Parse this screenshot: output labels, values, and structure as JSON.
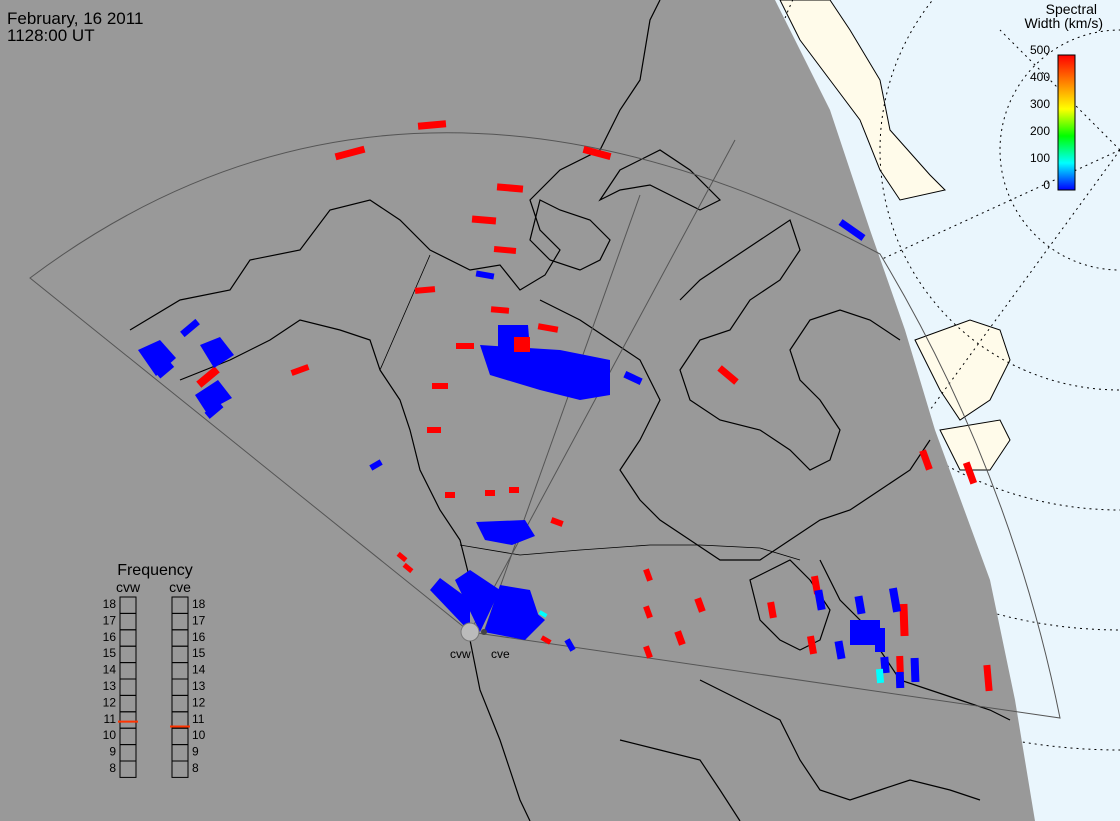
{
  "header": {
    "date": "February, 16 2011",
    "time": "1128:00 UT"
  },
  "colorbar": {
    "title_line1": "Spectral",
    "title_line2": "Width (km/s)",
    "ticks": [
      "500",
      "400",
      "300",
      "200",
      "100",
      "0"
    ],
    "colors": [
      "#ff0000",
      "#ff8000",
      "#ffff00",
      "#00ff00",
      "#00ffff",
      "#0000ff"
    ]
  },
  "frequency": {
    "title": "Frequency",
    "radars": [
      "cvw",
      "cve"
    ],
    "ticks": [
      "18",
      "17",
      "16",
      "15",
      "14",
      "13",
      "12",
      "11",
      "10",
      "9",
      "8"
    ],
    "cvw_mhz": 10.9,
    "cve_mhz": 10.6
  },
  "radar_sites": [
    "cvw",
    "cve"
  ],
  "colors": {
    "night": "#999999",
    "day_land": "#fffbea",
    "day_ocean": "#eaf6fd",
    "high_width": "#ff0000",
    "low_width": "#0000ff",
    "mid_width": "#00ffff"
  }
}
